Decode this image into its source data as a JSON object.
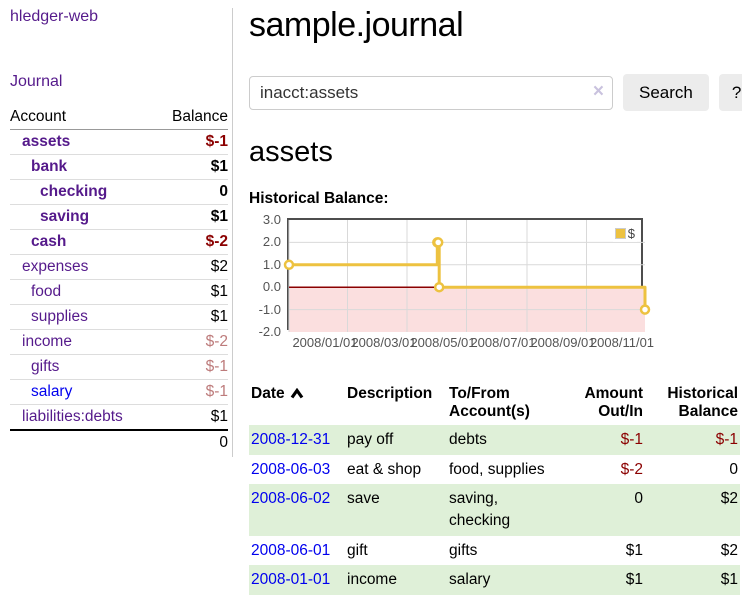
{
  "sidebar": {
    "app_title": "hledger-web",
    "journal_link": "Journal",
    "accounts_table": {
      "col_account": "Account",
      "col_balance": "Balance",
      "rows": [
        {
          "name": "assets",
          "balance": "$-1"
        },
        {
          "name": "bank",
          "balance": "$1"
        },
        {
          "name": "checking",
          "balance": "0"
        },
        {
          "name": "saving",
          "balance": "$1"
        },
        {
          "name": "cash",
          "balance": "$-2"
        },
        {
          "name": "expenses",
          "balance": "$2"
        },
        {
          "name": "food",
          "balance": "$1"
        },
        {
          "name": "supplies",
          "balance": "$1"
        },
        {
          "name": "income",
          "balance": "$-2"
        },
        {
          "name": "gifts",
          "balance": "$-1"
        },
        {
          "name": "salary",
          "balance": "$-1"
        },
        {
          "name": "liabilities:debts",
          "balance": "$1"
        }
      ],
      "total": "0"
    }
  },
  "header": {
    "title": "sample.journal"
  },
  "search": {
    "value": "inacct:assets",
    "clear_icon": "×",
    "button_label": "Search",
    "help_label": "?"
  },
  "account_page": {
    "heading": "assets"
  },
  "chart_data": {
    "type": "line",
    "title": "Historical Balance:",
    "step": true,
    "series": [
      {
        "name": "$",
        "color": "#edc240",
        "points": [
          [
            "2008-01-01",
            1
          ],
          [
            "2008-06-01",
            2
          ],
          [
            "2008-06-02",
            2
          ],
          [
            "2008-06-03",
            0
          ],
          [
            "2008-12-31",
            -1
          ]
        ]
      }
    ],
    "xlim": [
      "2008-01-01",
      "2008-12-31"
    ],
    "ylim": [
      -2,
      3
    ],
    "yticks": [
      "3.0",
      "2.0",
      "1.0",
      "0.0",
      "-1.0",
      "-2.0"
    ],
    "xticks": [
      "2008/01/01",
      "2008/03/01",
      "2008/05/01",
      "2008/07/01",
      "2008/09/01",
      "2008/11/01"
    ],
    "legend_position": "top-right",
    "grid": true,
    "negative_region_color": "#fbdfdf",
    "zero_line_color": "#8b0000"
  },
  "register_table": {
    "headers": {
      "date": "Date",
      "description": "Description",
      "tofrom": "To/From Account(s)",
      "amount": "Amount Out/In",
      "balance": "Historical Balance"
    },
    "rows": [
      {
        "date": "2008-12-31",
        "description": "pay off",
        "accounts": "debts",
        "amount": "$-1",
        "balance": "$-1"
      },
      {
        "date": "2008-06-03",
        "description": "eat & shop",
        "accounts": "food, supplies",
        "amount": "$-2",
        "balance": "0"
      },
      {
        "date": "2008-06-02",
        "description": "save",
        "accounts": "saving, checking",
        "amount": "0",
        "balance": "$2"
      },
      {
        "date": "2008-06-01",
        "description": "gift",
        "accounts": "gifts",
        "amount": "$1",
        "balance": "$2"
      },
      {
        "date": "2008-01-01",
        "description": "income",
        "accounts": "salary",
        "amount": "$1",
        "balance": "$1"
      }
    ]
  }
}
